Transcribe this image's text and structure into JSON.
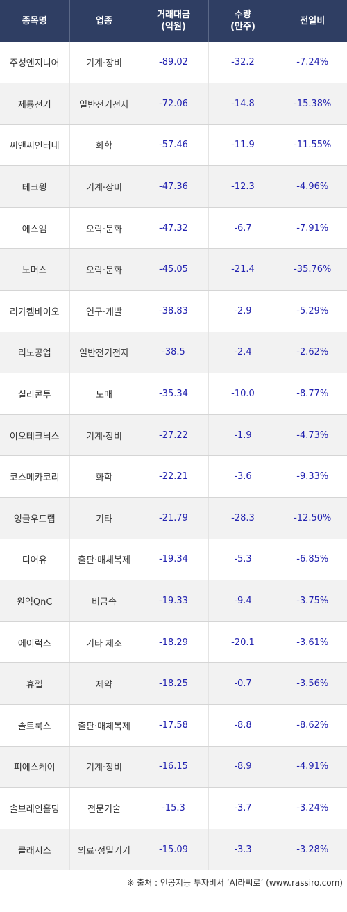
{
  "table": {
    "headers": [
      {
        "line1": "종목명",
        "line2": ""
      },
      {
        "line1": "업종",
        "line2": ""
      },
      {
        "line1": "거래대금",
        "line2": "(억원)"
      },
      {
        "line1": "수량",
        "line2": "(만주)"
      },
      {
        "line1": "전일비",
        "line2": ""
      }
    ],
    "rows": [
      [
        "주성엔지니어",
        "기계·장비",
        "-89.02",
        "-32.2",
        "-7.24%"
      ],
      [
        "제룡전기",
        "일반전기전자",
        "-72.06",
        "-14.8",
        "-15.38%"
      ],
      [
        "씨앤씨인터내",
        "화학",
        "-57.46",
        "-11.9",
        "-11.55%"
      ],
      [
        "테크윙",
        "기계·장비",
        "-47.36",
        "-12.3",
        "-4.96%"
      ],
      [
        "에스엠",
        "오락·문화",
        "-47.32",
        "-6.7",
        "-7.91%"
      ],
      [
        "노머스",
        "오락·문화",
        "-45.05",
        "-21.4",
        "-35.76%"
      ],
      [
        "리가켐바이오",
        "연구·개발",
        "-38.83",
        "-2.9",
        "-5.29%"
      ],
      [
        "리노공업",
        "일반전기전자",
        "-38.5",
        "-2.4",
        "-2.62%"
      ],
      [
        "실리콘투",
        "도매",
        "-35.34",
        "-10.0",
        "-8.77%"
      ],
      [
        "이오테크닉스",
        "기계·장비",
        "-27.22",
        "-1.9",
        "-4.73%"
      ],
      [
        "코스메카코리",
        "화학",
        "-22.21",
        "-3.6",
        "-9.33%"
      ],
      [
        "잉글우드랩",
        "기타",
        "-21.79",
        "-28.3",
        "-12.50%"
      ],
      [
        "디어유",
        "출판·매체복제",
        "-19.34",
        "-5.3",
        "-6.85%"
      ],
      [
        "원익QnC",
        "비금속",
        "-19.33",
        "-9.4",
        "-3.75%"
      ],
      [
        "에이럭스",
        "기타 제조",
        "-18.29",
        "-20.1",
        "-3.61%"
      ],
      [
        "휴젤",
        "제약",
        "-18.25",
        "-0.7",
        "-3.56%"
      ],
      [
        "솔트룩스",
        "출판·매체복제",
        "-17.58",
        "-8.8",
        "-8.62%"
      ],
      [
        "피에스케이",
        "기계·장비",
        "-16.15",
        "-8.9",
        "-4.91%"
      ],
      [
        "솔브레인홀딩",
        "전문기술",
        "-15.3",
        "-3.7",
        "-3.24%"
      ],
      [
        "클래시스",
        "의료·정밀기기",
        "-15.09",
        "-3.3",
        "-3.28%"
      ]
    ]
  },
  "footer": {
    "source": "※ 출처 : 인공지능 투자비서 ‘AI라씨로’ (www.rassiro.com)"
  },
  "colors": {
    "header_bg": "#2f3e63",
    "header_text": "#ffffff",
    "number_text": "#2323b0",
    "stripe_bg": "#f2f2f2"
  }
}
